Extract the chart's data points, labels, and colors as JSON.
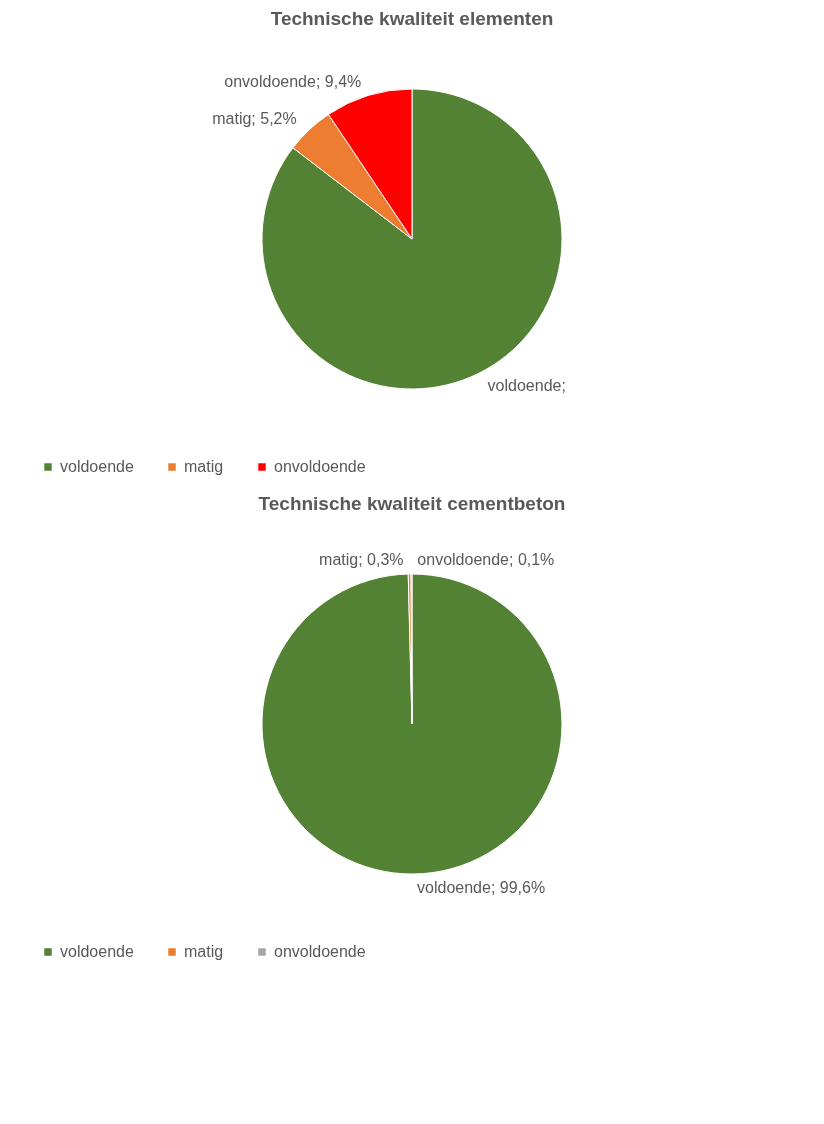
{
  "chart_data": [
    {
      "type": "pie",
      "title": "Technische kwaliteit elementen",
      "categories": [
        "voldoende",
        "matig",
        "onvoldoende"
      ],
      "values": [
        85.4,
        5.2,
        9.4
      ],
      "colors": [
        "#548235",
        "#ed7d31",
        "#ff0000"
      ],
      "value_labels": [
        "voldoende;",
        "matig; 5,2%",
        "onvoldoende; 9,4%"
      ],
      "legend": "bottom"
    },
    {
      "type": "pie",
      "title": "Technische kwaliteit cementbeton",
      "categories": [
        "voldoende",
        "matig",
        "onvoldoende"
      ],
      "values": [
        99.6,
        0.3,
        0.1
      ],
      "colors": [
        "#548235",
        "#ed7d31",
        "#a5a5a5"
      ],
      "value_labels": [
        "voldoende; 99,6%",
        "matig; 0,3%",
        "onvoldoende; 0,1%"
      ],
      "legend": "bottom"
    }
  ]
}
